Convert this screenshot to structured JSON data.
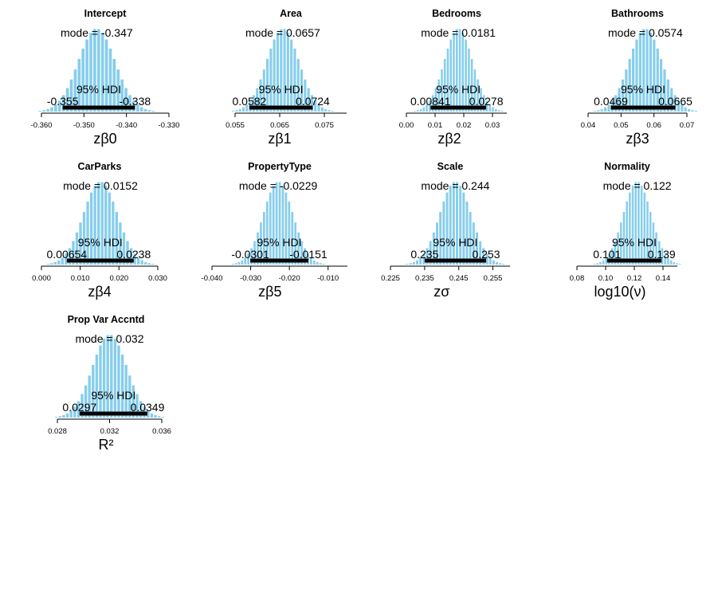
{
  "chart_data": [
    {
      "type": "histogram",
      "title": "Intercept",
      "xlabel": "zβ0",
      "xlim": [
        -0.36,
        -0.33
      ],
      "ticks": [
        -0.36,
        -0.35,
        -0.34,
        -0.33
      ],
      "tick_labels": [
        "-0.360",
        "-0.350",
        "-0.340",
        "-0.330"
      ],
      "mode": -0.347,
      "mode_label": "mode = -0.347",
      "hdi_low": -0.355,
      "hdi_high": -0.338,
      "hdi_low_label": "-0.355",
      "hdi_high_label": "-0.338",
      "hdi_label": "95% HDI"
    },
    {
      "type": "histogram",
      "title": "Area",
      "xlabel": "zβ1",
      "xlim": [
        0.055,
        0.08
      ],
      "ticks": [
        0.055,
        0.065,
        0.075
      ],
      "tick_labels": [
        "0.055",
        "0.065",
        "0.075"
      ],
      "mode": 0.0657,
      "mode_label": "mode = 0.0657",
      "hdi_low": 0.0582,
      "hdi_high": 0.0724,
      "hdi_low_label": "0.0582",
      "hdi_high_label": "0.0724",
      "hdi_label": "95% HDI"
    },
    {
      "type": "histogram",
      "title": "Bedrooms",
      "xlabel": "zβ2",
      "xlim": [
        0,
        0.035
      ],
      "ticks": [
        0,
        0.01,
        0.02,
        0.03
      ],
      "tick_labels": [
        "0.00",
        "0.01",
        "0.02",
        "0.03"
      ],
      "mode": 0.0181,
      "mode_label": "mode = 0.0181",
      "hdi_low": 0.00841,
      "hdi_high": 0.0278,
      "hdi_low_label": "0.00841",
      "hdi_high_label": "0.0278",
      "hdi_label": "95% HDI"
    },
    {
      "type": "histogram",
      "title": "Bathrooms",
      "xlabel": "zβ3",
      "xlim": [
        0.04,
        0.07
      ],
      "ticks": [
        0.04,
        0.05,
        0.06,
        0.07
      ],
      "tick_labels": [
        "0.04",
        "0.05",
        "0.06",
        "0.07"
      ],
      "mode": 0.0574,
      "mode_label": "mode = 0.0574",
      "hdi_low": 0.0469,
      "hdi_high": 0.0665,
      "hdi_low_label": "0.0469",
      "hdi_high_label": "0.0665",
      "hdi_label": "95% HDI"
    },
    {
      "type": "histogram",
      "title": "CarParks",
      "xlabel": "zβ4",
      "xlim": [
        0,
        0.03
      ],
      "ticks": [
        0,
        0.01,
        0.02,
        0.03
      ],
      "tick_labels": [
        "0.000",
        "0.010",
        "0.020",
        "0.030"
      ],
      "mode": 0.0152,
      "mode_label": "mode = 0.0152",
      "hdi_low": 0.00654,
      "hdi_high": 0.0238,
      "hdi_low_label": "0.00654",
      "hdi_high_label": "0.0238",
      "hdi_label": "95% HDI"
    },
    {
      "type": "histogram",
      "title": "PropertyType",
      "xlabel": "zβ5",
      "xlim": [
        -0.04,
        -0.005
      ],
      "ticks": [
        -0.04,
        -0.03,
        -0.02,
        -0.01
      ],
      "tick_labels": [
        "-0.040",
        "-0.030",
        "-0.020",
        "-0.010"
      ],
      "mode": -0.0229,
      "mode_label": "mode = -0.0229",
      "hdi_low": -0.0301,
      "hdi_high": -0.0151,
      "hdi_low_label": "-0.0301",
      "hdi_high_label": "-0.0151",
      "hdi_label": "95% HDI"
    },
    {
      "type": "histogram",
      "title": "Scale",
      "xlabel": "zσ",
      "xlim": [
        0.225,
        0.26
      ],
      "ticks": [
        0.225,
        0.235,
        0.245,
        0.255
      ],
      "tick_labels": [
        "0.225",
        "0.235",
        "0.245",
        "0.255"
      ],
      "mode": 0.244,
      "mode_label": "mode = 0.244",
      "hdi_low": 0.235,
      "hdi_high": 0.253,
      "hdi_low_label": "0.235",
      "hdi_high_label": "0.253",
      "hdi_label": "95% HDI"
    },
    {
      "type": "histogram",
      "title": "Normality",
      "xlabel": "log10(ν)",
      "xlim": [
        0.08,
        0.15
      ],
      "ticks": [
        0.08,
        0.1,
        0.12,
        0.14
      ],
      "tick_labels": [
        "0.08",
        "0.10",
        "0.12",
        "0.14"
      ],
      "mode": 0.122,
      "mode_label": "mode = 0.122",
      "hdi_low": 0.101,
      "hdi_high": 0.139,
      "hdi_low_label": "0.101",
      "hdi_high_label": "0.139",
      "hdi_label": "95% HDI"
    },
    {
      "type": "histogram",
      "title": "Prop Var Accntd",
      "xlabel": "R²",
      "xlim": [
        0.028,
        0.036
      ],
      "ticks": [
        0.028,
        0.032,
        0.036
      ],
      "tick_labels": [
        "0.028",
        "0.032",
        "0.036"
      ],
      "mode": 0.032,
      "mode_label": "mode = 0.032",
      "hdi_low": 0.0297,
      "hdi_high": 0.0349,
      "hdi_low_label": "0.0297",
      "hdi_high_label": "0.0349",
      "hdi_label": "95% HDI"
    }
  ],
  "colors": {
    "bars": "#87ceeb",
    "hdi": "#000000",
    "axis": "#000000"
  }
}
